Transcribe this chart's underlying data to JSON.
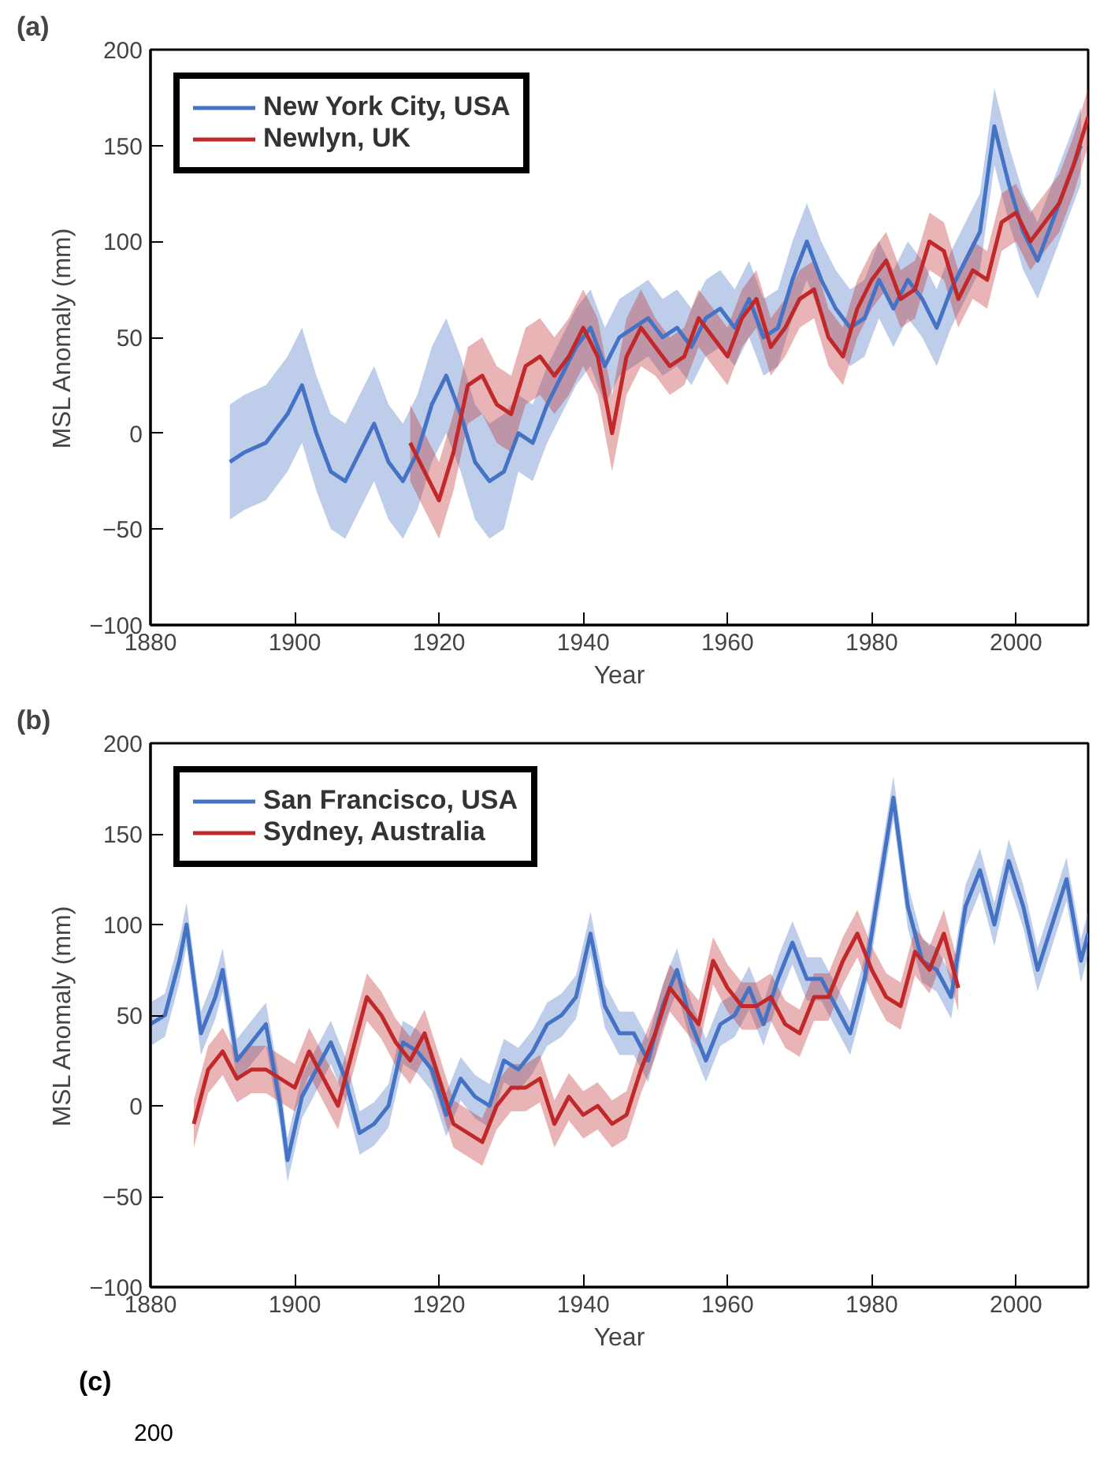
{
  "chart_data": [
    {
      "type": "line",
      "title": "(a)",
      "xlabel": "Year",
      "ylabel": "MSL Anomaly (mm)",
      "xlim": [
        1880,
        2010
      ],
      "xticks": [
        1880,
        1900,
        1920,
        1940,
        1960,
        1980,
        2000
      ],
      "ylim": [
        -100,
        200
      ],
      "yticks": [
        -100,
        -50,
        0,
        50,
        100,
        150,
        200
      ],
      "grid": false,
      "legend": "top left",
      "line_style": "solid",
      "marker": "none",
      "series": [
        {
          "name": "New York City, USA",
          "color": "#4472c4",
          "x": [
            1891,
            1893,
            1896,
            1899,
            1901,
            1903,
            1905,
            1907,
            1909,
            1911,
            1913,
            1915,
            1917,
            1919,
            1921,
            1923,
            1925,
            1927,
            1929,
            1931,
            1933,
            1935,
            1937,
            1939,
            1941,
            1943,
            1945,
            1947,
            1949,
            1951,
            1953,
            1955,
            1957,
            1959,
            1961,
            1963,
            1965,
            1967,
            1969,
            1971,
            1973,
            1975,
            1977,
            1979,
            1981,
            1983,
            1985,
            1987,
            1989,
            1991,
            1993,
            1995,
            1997,
            1999,
            2001,
            2003,
            2005,
            2007,
            2009
          ],
          "values": [
            -15,
            -10,
            -5,
            10,
            25,
            0,
            -20,
            -25,
            -10,
            5,
            -15,
            -25,
            -10,
            15,
            30,
            10,
            -15,
            -25,
            -20,
            0,
            -5,
            15,
            30,
            45,
            55,
            35,
            50,
            55,
            60,
            50,
            55,
            45,
            60,
            65,
            55,
            70,
            50,
            55,
            80,
            100,
            80,
            65,
            55,
            60,
            80,
            65,
            80,
            70,
            55,
            75,
            90,
            105,
            160,
            130,
            105,
            90,
            110,
            130,
            150
          ],
          "lower": [
            -45,
            -40,
            -35,
            -20,
            -5,
            -30,
            -50,
            -55,
            -40,
            -25,
            -45,
            -55,
            -40,
            -15,
            0,
            -20,
            -45,
            -55,
            -50,
            -20,
            -25,
            -5,
            10,
            25,
            35,
            15,
            30,
            35,
            40,
            30,
            35,
            25,
            40,
            45,
            35,
            50,
            30,
            35,
            60,
            80,
            60,
            45,
            35,
            40,
            60,
            45,
            60,
            50,
            35,
            55,
            70,
            85,
            140,
            110,
            85,
            70,
            90,
            110,
            130
          ],
          "upper": [
            15,
            20,
            25,
            40,
            55,
            30,
            10,
            5,
            20,
            35,
            15,
            5,
            20,
            45,
            60,
            40,
            15,
            5,
            10,
            20,
            15,
            35,
            50,
            65,
            75,
            55,
            70,
            75,
            80,
            70,
            75,
            65,
            80,
            85,
            75,
            90,
            70,
            75,
            100,
            120,
            100,
            85,
            75,
            80,
            100,
            85,
            100,
            90,
            75,
            95,
            110,
            125,
            180,
            150,
            125,
            110,
            130,
            150,
            170
          ]
        },
        {
          "name": "Newlyn, UK",
          "color": "#c0282a",
          "x": [
            1916,
            1918,
            1920,
            1922,
            1924,
            1926,
            1928,
            1930,
            1932,
            1934,
            1936,
            1938,
            1940,
            1942,
            1944,
            1946,
            1948,
            1950,
            1952,
            1954,
            1956,
            1958,
            1960,
            1962,
            1964,
            1966,
            1968,
            1970,
            1972,
            1974,
            1976,
            1978,
            1980,
            1982,
            1984,
            1986,
            1988,
            1990,
            1992,
            1994,
            1996,
            1998,
            2000,
            2002,
            2004,
            2006,
            2008,
            2010
          ],
          "values": [
            -5,
            -20,
            -35,
            -10,
            25,
            30,
            15,
            10,
            35,
            40,
            30,
            40,
            55,
            40,
            0,
            40,
            55,
            45,
            35,
            40,
            60,
            50,
            40,
            60,
            70,
            45,
            55,
            70,
            75,
            50,
            40,
            65,
            80,
            90,
            70,
            75,
            100,
            95,
            70,
            85,
            80,
            110,
            115,
            100,
            110,
            120,
            140,
            165
          ],
          "lower": [
            -25,
            -40,
            -55,
            -30,
            5,
            10,
            -5,
            -10,
            15,
            20,
            10,
            20,
            35,
            20,
            -20,
            20,
            35,
            30,
            20,
            25,
            45,
            35,
            25,
            45,
            55,
            30,
            40,
            55,
            60,
            35,
            25,
            50,
            65,
            75,
            55,
            60,
            85,
            80,
            55,
            70,
            65,
            95,
            100,
            85,
            95,
            105,
            125,
            150
          ],
          "upper": [
            15,
            0,
            -15,
            10,
            45,
            50,
            35,
            30,
            55,
            60,
            50,
            60,
            75,
            60,
            20,
            60,
            75,
            60,
            50,
            55,
            75,
            65,
            55,
            75,
            85,
            60,
            70,
            85,
            90,
            65,
            55,
            80,
            95,
            105,
            85,
            90,
            115,
            110,
            85,
            100,
            95,
            125,
            130,
            115,
            125,
            135,
            155,
            180
          ]
        }
      ]
    },
    {
      "type": "line",
      "title": "(b)",
      "xlabel": "Year",
      "ylabel": "MSL Anomaly (mm)",
      "xlim": [
        1880,
        2010
      ],
      "xticks": [
        1880,
        1900,
        1920,
        1940,
        1960,
        1980,
        2000
      ],
      "ylim": [
        -100,
        200
      ],
      "yticks": [
        -100,
        -50,
        0,
        50,
        100,
        150,
        200
      ],
      "grid": false,
      "legend": "top left",
      "line_style": "solid",
      "marker": "none",
      "series": [
        {
          "name": "San Francisco, USA",
          "color": "#4472c4",
          "x": [
            1880,
            1882,
            1884,
            1885,
            1887,
            1889,
            1890,
            1892,
            1894,
            1896,
            1898,
            1899,
            1901,
            1903,
            1905,
            1907,
            1909,
            1911,
            1913,
            1915,
            1917,
            1919,
            1921,
            1923,
            1925,
            1927,
            1929,
            1931,
            1933,
            1935,
            1937,
            1939,
            1941,
            1943,
            1945,
            1947,
            1949,
            1951,
            1953,
            1955,
            1957,
            1959,
            1961,
            1963,
            1965,
            1967,
            1969,
            1971,
            1973,
            1975,
            1977,
            1979,
            1981,
            1983,
            1985,
            1987,
            1989,
            1991,
            1993,
            1995,
            1997,
            1999,
            2001,
            2003,
            2005,
            2007,
            2009,
            2010
          ],
          "values": [
            45,
            50,
            80,
            100,
            40,
            60,
            75,
            25,
            35,
            45,
            0,
            -30,
            5,
            20,
            35,
            15,
            -15,
            -10,
            0,
            35,
            30,
            20,
            -5,
            15,
            5,
            0,
            25,
            20,
            30,
            45,
            50,
            60,
            95,
            55,
            40,
            40,
            25,
            55,
            75,
            45,
            25,
            45,
            50,
            65,
            45,
            70,
            90,
            70,
            70,
            55,
            40,
            70,
            120,
            170,
            110,
            80,
            75,
            60,
            110,
            130,
            100,
            135,
            110,
            75,
            100,
            125,
            80,
            95
          ],
          "lower": [
            33,
            38,
            68,
            88,
            28,
            48,
            63,
            13,
            23,
            33,
            -12,
            -42,
            -7,
            8,
            23,
            3,
            -27,
            -22,
            -12,
            23,
            18,
            8,
            -17,
            3,
            -7,
            -12,
            13,
            8,
            18,
            33,
            38,
            48,
            83,
            43,
            28,
            28,
            13,
            43,
            63,
            33,
            13,
            33,
            38,
            53,
            33,
            58,
            78,
            58,
            58,
            43,
            28,
            58,
            108,
            158,
            98,
            68,
            63,
            48,
            98,
            118,
            88,
            123,
            98,
            63,
            88,
            113,
            68,
            83
          ],
          "upper": [
            57,
            62,
            92,
            112,
            52,
            72,
            87,
            37,
            47,
            57,
            12,
            -18,
            17,
            32,
            47,
            27,
            -3,
            2,
            12,
            47,
            42,
            32,
            7,
            27,
            17,
            12,
            37,
            32,
            42,
            57,
            62,
            72,
            107,
            67,
            52,
            52,
            37,
            67,
            87,
            57,
            37,
            57,
            62,
            77,
            57,
            82,
            102,
            82,
            82,
            67,
            52,
            82,
            132,
            182,
            122,
            92,
            87,
            72,
            122,
            142,
            112,
            147,
            122,
            87,
            112,
            137,
            92,
            107
          ]
        },
        {
          "name": "Sydney, Australia",
          "color": "#c0282a",
          "x": [
            1886,
            1888,
            1890,
            1892,
            1894,
            1896,
            1898,
            1900,
            1902,
            1904,
            1906,
            1908,
            1910,
            1912,
            1914,
            1916,
            1918,
            1920,
            1922,
            1924,
            1926,
            1928,
            1930,
            1932,
            1934,
            1936,
            1938,
            1940,
            1942,
            1944,
            1946,
            1948,
            1950,
            1952,
            1954,
            1956,
            1958,
            1960,
            1962,
            1964,
            1966,
            1968,
            1970,
            1972,
            1974,
            1976,
            1978,
            1980,
            1982,
            1984,
            1986,
            1988,
            1990,
            1992
          ],
          "values": [
            -10,
            20,
            30,
            15,
            20,
            20,
            15,
            10,
            30,
            15,
            0,
            30,
            60,
            50,
            35,
            25,
            40,
            15,
            -10,
            -15,
            -20,
            0,
            10,
            10,
            15,
            -10,
            5,
            -5,
            0,
            -10,
            -5,
            20,
            40,
            65,
            55,
            45,
            80,
            65,
            55,
            55,
            60,
            45,
            40,
            60,
            60,
            80,
            95,
            75,
            60,
            55,
            85,
            75,
            95,
            65
          ],
          "lower": [
            -23,
            7,
            17,
            2,
            7,
            7,
            2,
            -3,
            17,
            2,
            -13,
            17,
            47,
            37,
            22,
            12,
            27,
            2,
            -23,
            -28,
            -33,
            -13,
            -3,
            -3,
            2,
            -23,
            -8,
            -18,
            -13,
            -23,
            -18,
            7,
            27,
            52,
            42,
            32,
            67,
            52,
            42,
            42,
            47,
            32,
            27,
            47,
            47,
            67,
            82,
            62,
            47,
            42,
            72,
            62,
            82,
            52
          ],
          "upper": [
            3,
            33,
            43,
            28,
            33,
            33,
            28,
            23,
            43,
            28,
            13,
            43,
            73,
            63,
            48,
            38,
            53,
            28,
            3,
            -2,
            -7,
            13,
            23,
            23,
            28,
            3,
            18,
            8,
            13,
            3,
            8,
            33,
            53,
            78,
            68,
            58,
            93,
            78,
            68,
            68,
            73,
            58,
            53,
            73,
            73,
            93,
            108,
            88,
            73,
            68,
            98,
            88,
            108,
            78
          ]
        }
      ]
    },
    {
      "type": "other",
      "title": "(c)",
      "annotations": [
        "200"
      ]
    }
  ]
}
